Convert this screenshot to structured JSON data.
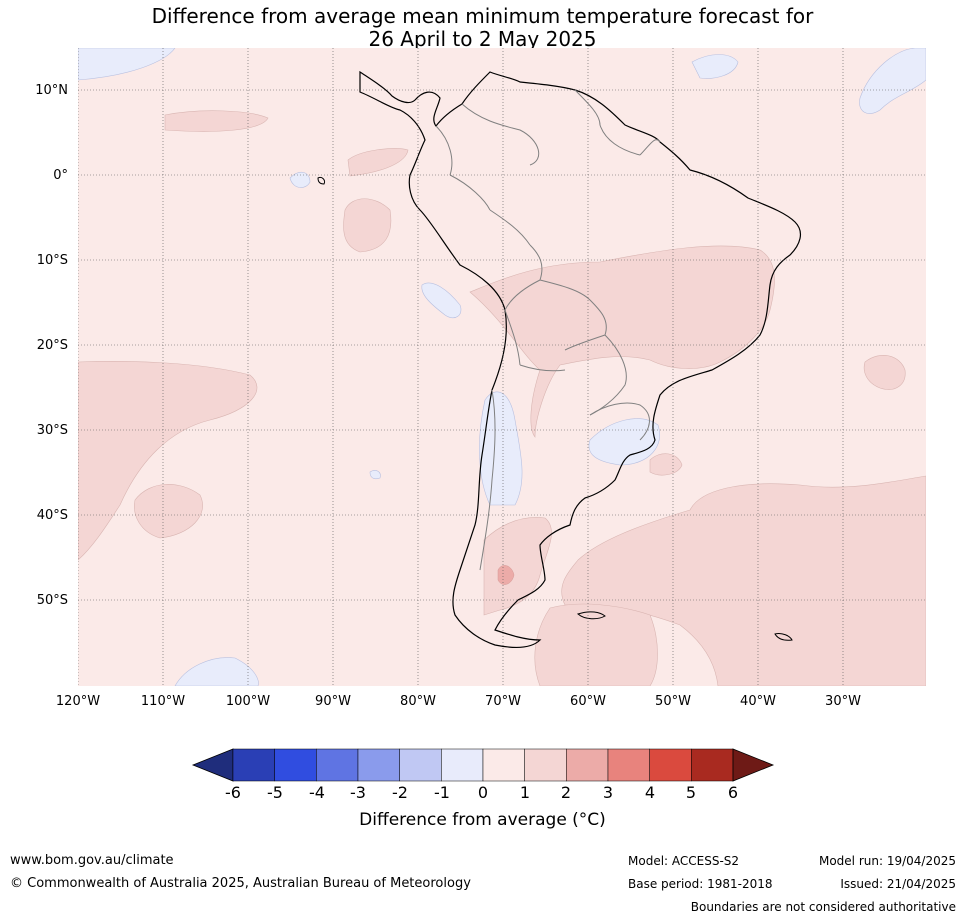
{
  "title": {
    "line1": "Difference from average mean minimum temperature forecast for",
    "line2": "26 April to 2 May 2025"
  },
  "map": {
    "latitude_labels": [
      "10°N",
      "0°",
      "10°S",
      "20°S",
      "30°S",
      "40°S",
      "50°S"
    ],
    "longitude_labels": [
      "120°W",
      "110°W",
      "100°W",
      "90°W",
      "80°W",
      "70°W",
      "60°W",
      "50°W",
      "40°W",
      "30°W"
    ],
    "colors": {
      "background_0_to_1": "#fbeae8",
      "range_1_to_2": "#f4d6d4",
      "range_2_to_3": "#ecaba8",
      "range_minus1_to_0": "#e8ecfb",
      "land_border": "#000000",
      "country_border": "#808080",
      "grid": "#555555"
    }
  },
  "colorbar": {
    "ticks": [
      "-6",
      "-5",
      "-4",
      "-3",
      "-2",
      "-1",
      "0",
      "1",
      "2",
      "3",
      "4",
      "5",
      "6"
    ],
    "colors": [
      "#1f2d7c",
      "#2a3fb5",
      "#304de0",
      "#5f74e3",
      "#8a9bec",
      "#c0c8f3",
      "#e8ebfb",
      "#fbeae8",
      "#f4d6d4",
      "#ecaba8",
      "#e8837d",
      "#da4a3e",
      "#a92a20",
      "#6e1a16"
    ],
    "label": "Difference from average (°C)"
  },
  "footer": {
    "website": "www.bom.gov.au/climate",
    "copyright": "© Commonwealth of Australia 2025, Australian Bureau of Meteorology",
    "model": "Model: ACCESS-S2",
    "base_period": "Base period: 1981-2018",
    "model_run": "Model run: 19/04/2025",
    "issued": "Issued: 21/04/2025",
    "disclaimer": "Boundaries are not considered authoritative"
  }
}
